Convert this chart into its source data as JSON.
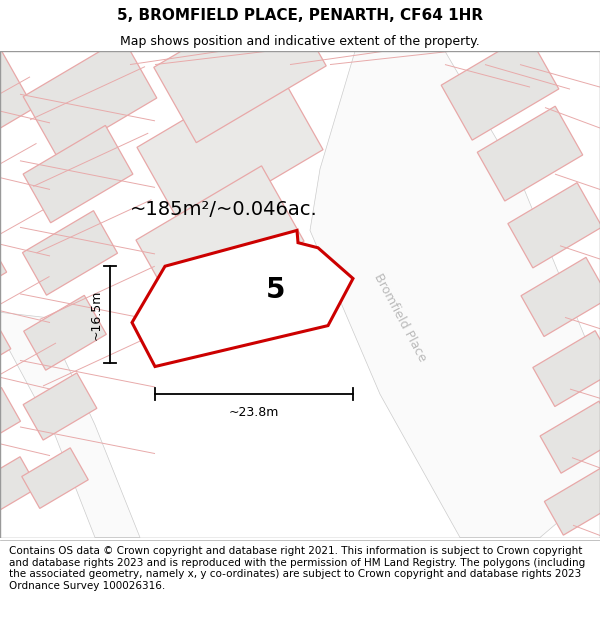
{
  "title": "5, BROMFIELD PLACE, PENARTH, CF64 1HR",
  "subtitle": "Map shows position and indicative extent of the property.",
  "footer": "Contains OS data © Crown copyright and database right 2021. This information is subject to Crown copyright and database rights 2023 and is reproduced with the permission of HM Land Registry. The polygons (including the associated geometry, namely x, y co-ordinates) are subject to Crown copyright and database rights 2023 Ordnance Survey 100026316.",
  "area_label": "~185m²/~0.046ac.",
  "width_label": "~23.8m",
  "height_label": "~16.5m",
  "plot_number": "5",
  "map_bg": "#f0efee",
  "block_fill": "#e5e4e2",
  "block_edge": "#e8a8a8",
  "road_fill": "#fafafa",
  "road_edge": "#dddddd",
  "plot_fill": "#ffffff",
  "plot_stroke": "#cc0000",
  "road_label_color": "#bbbbbb",
  "street_name": "Bromfield Place",
  "title_fontsize": 11,
  "subtitle_fontsize": 9,
  "footer_fontsize": 7.5,
  "area_fontsize": 14,
  "number_fontsize": 20,
  "dim_fontsize": 9
}
